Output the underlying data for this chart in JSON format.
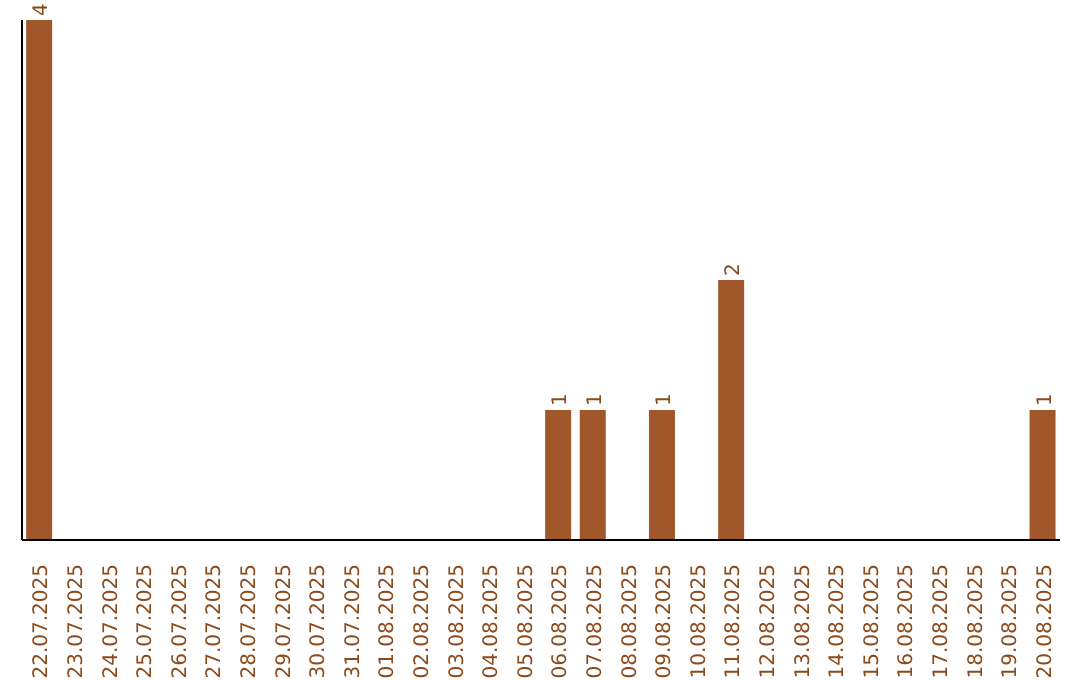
{
  "chart_data": {
    "type": "bar",
    "categories": [
      "22.07.2025",
      "23.07.2025",
      "24.07.2025",
      "25.07.2025",
      "26.07.2025",
      "27.07.2025",
      "28.07.2025",
      "29.07.2025",
      "30.07.2025",
      "31.07.2025",
      "01.08.2025",
      "02.08.2025",
      "03.08.2025",
      "04.08.2025",
      "05.08.2025",
      "06.08.2025",
      "07.08.2025",
      "08.08.2025",
      "09.08.2025",
      "10.08.2025",
      "11.08.2025",
      "12.08.2025",
      "13.08.2025",
      "14.08.2025",
      "15.08.2025",
      "16.08.2025",
      "17.08.2025",
      "18.08.2025",
      "19.08.2025",
      "20.08.2025"
    ],
    "values": [
      4,
      0,
      0,
      0,
      0,
      0,
      0,
      0,
      0,
      0,
      0,
      0,
      0,
      0,
      0,
      1,
      1,
      0,
      1,
      0,
      2,
      0,
      0,
      0,
      0,
      0,
      0,
      0,
      0,
      1
    ],
    "value_labels": [
      "4",
      null,
      null,
      null,
      null,
      null,
      null,
      null,
      null,
      null,
      null,
      null,
      null,
      null,
      null,
      "1",
      "1",
      null,
      "1",
      null,
      "2",
      null,
      null,
      null,
      null,
      null,
      null,
      null,
      null,
      "1"
    ],
    "color": "#a0572a"
  }
}
